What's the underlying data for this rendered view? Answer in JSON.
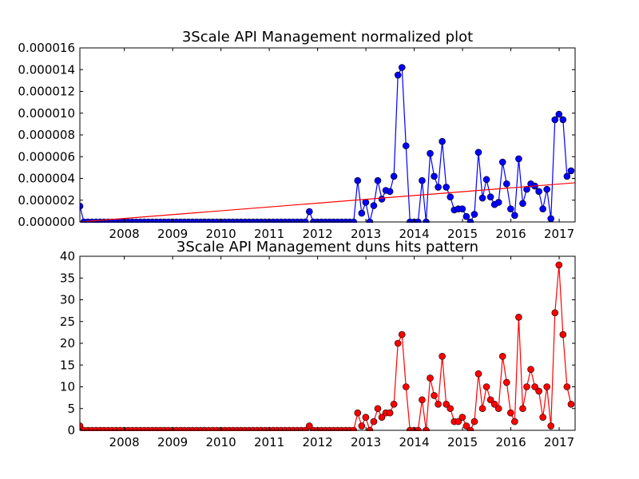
{
  "chart_data": [
    {
      "type": "line",
      "title": "3Scale API Management normalized plot",
      "xlabel": "",
      "ylabel": "",
      "x_tick_labels": [
        "2008",
        "2009",
        "2010",
        "2011",
        "2012",
        "2013",
        "2014",
        "2015",
        "2016",
        "2017"
      ],
      "y_tick_labels": [
        "0.000000",
        "0.000002",
        "0.000004",
        "0.000006",
        "0.000008",
        "0.000010",
        "0.000012",
        "0.000014",
        "0.000016"
      ],
      "xlim": [
        2007.08,
        2017.33
      ],
      "ylim": [
        0,
        1.6e-05
      ],
      "grid": false,
      "series": [
        {
          "color": "#0000ff",
          "marker": "circle",
          "x_start": 2007.08,
          "x_step": 0.08333,
          "values": [
            1.45e-06,
            0,
            0,
            0,
            0,
            0,
            0,
            0,
            0,
            0,
            0,
            0,
            0,
            0,
            0,
            0,
            0,
            0,
            0,
            0,
            0,
            0,
            0,
            0,
            0,
            0,
            0,
            0,
            0,
            0,
            0,
            0,
            0,
            0,
            0,
            0,
            0,
            0,
            0,
            0,
            0,
            0,
            0,
            0,
            0,
            0,
            0,
            0,
            0,
            0,
            0,
            0,
            0,
            0,
            0,
            0,
            0,
            9.5e-07,
            0,
            0,
            0,
            0,
            0,
            0,
            0,
            0,
            0,
            0,
            0,
            3.8e-06,
            8e-07,
            1.8e-06,
            0,
            1.5e-06,
            3.8e-06,
            2.1e-06,
            2.9e-06,
            2.8e-06,
            4.2e-06,
            1.35e-05,
            1.42e-05,
            7e-06,
            0,
            0,
            0,
            3.8e-06,
            0,
            6.3e-06,
            4.2e-06,
            3.2e-06,
            7.4e-06,
            3.2e-06,
            2.3e-06,
            1.1e-06,
            1.2e-06,
            1.2e-06,
            5e-07,
            0,
            7e-07,
            6.4e-06,
            2.2e-06,
            3.9e-06,
            2.3e-06,
            1.6e-06,
            1.8e-06,
            5.5e-06,
            3.5e-06,
            1.2e-06,
            6e-07,
            5.8e-06,
            1.7e-06,
            3e-06,
            3.5e-06,
            3.3e-06,
            2.8e-06,
            1.2e-06,
            3e-06,
            3e-07,
            9.4e-06,
            9.9e-06,
            9.4e-06,
            4.2e-06,
            4.7e-06
          ]
        },
        {
          "type": "trend-line",
          "color": "#ff0000",
          "x": [
            2007.08,
            2017.33
          ],
          "y": [
            0,
            3.6e-06
          ]
        }
      ]
    },
    {
      "type": "line",
      "title": "3Scale API Management duns hits pattern",
      "xlabel": "",
      "ylabel": "",
      "x_tick_labels": [
        "2008",
        "2009",
        "2010",
        "2011",
        "2012",
        "2013",
        "2014",
        "2015",
        "2016",
        "2017"
      ],
      "y_tick_labels": [
        "0",
        "5",
        "10",
        "15",
        "20",
        "25",
        "30",
        "35",
        "40"
      ],
      "xlim": [
        2007.08,
        2017.33
      ],
      "ylim": [
        0,
        40
      ],
      "grid": false,
      "series": [
        {
          "color": "#ff0000",
          "marker": "circle",
          "x_start": 2007.08,
          "x_step": 0.08333,
          "values": [
            1,
            0,
            0,
            0,
            0,
            0,
            0,
            0,
            0,
            0,
            0,
            0,
            0,
            0,
            0,
            0,
            0,
            0,
            0,
            0,
            0,
            0,
            0,
            0,
            0,
            0,
            0,
            0,
            0,
            0,
            0,
            0,
            0,
            0,
            0,
            0,
            0,
            0,
            0,
            0,
            0,
            0,
            0,
            0,
            0,
            0,
            0,
            0,
            0,
            0,
            0,
            0,
            0,
            0,
            0,
            0,
            0,
            1,
            0,
            0,
            0,
            0,
            0,
            0,
            0,
            0,
            0,
            0,
            0,
            4,
            1,
            3,
            0,
            2,
            5,
            3,
            4,
            4,
            6,
            20,
            22,
            10,
            0,
            0,
            0,
            7,
            0,
            12,
            8,
            6,
            17,
            6,
            5,
            2,
            2,
            3,
            1,
            0,
            2,
            13,
            5,
            10,
            7,
            6,
            5,
            17,
            11,
            4,
            2,
            26,
            5,
            10,
            14,
            10,
            9,
            3,
            10,
            1,
            27,
            38,
            22,
            10,
            6
          ]
        }
      ]
    }
  ]
}
